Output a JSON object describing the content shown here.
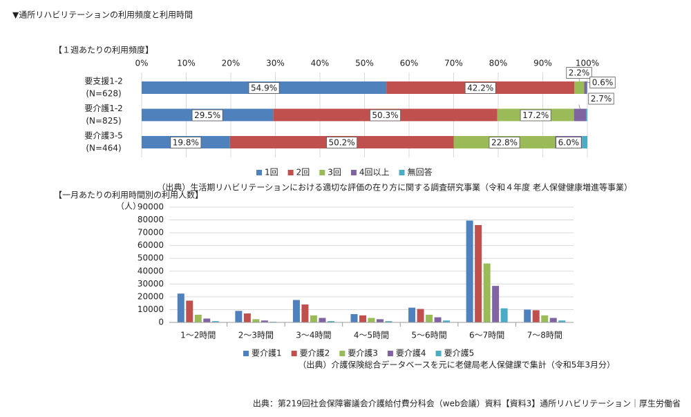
{
  "title": "▼通所リハビリテーションの利用頻度と利用時間",
  "footer": "出典：第219回社会保障審議会介護給付費分科会（web会議）資料【資料3】通所リハビリテーション｜厚生労働省",
  "chart_data": [
    {
      "type": "bar",
      "orientation": "horizontal",
      "stacked": true,
      "title": "【１週あたりの利用頻度】",
      "categories": [
        "要支援1-2",
        "要介護1-2",
        "要介護3-5"
      ],
      "category_notes": [
        "(N=628)",
        "(N=825)",
        "(N=464)"
      ],
      "xlim": [
        0,
        100
      ],
      "xticks": [
        {
          "value": 0,
          "label": "0%"
        },
        {
          "value": 10,
          "label": "10%"
        },
        {
          "value": 20,
          "label": "20%"
        },
        {
          "value": 30,
          "label": "30%"
        },
        {
          "value": 40,
          "label": "40%"
        },
        {
          "value": 50,
          "label": "50%"
        },
        {
          "value": 60,
          "label": "60%"
        },
        {
          "value": 70,
          "label": "70%"
        },
        {
          "value": 80,
          "label": "80%"
        },
        {
          "value": 90,
          "label": "90%"
        },
        {
          "value": 100,
          "label": "100%"
        }
      ],
      "grid": true,
      "series": [
        {
          "name": "1回",
          "color": "#4f81bd",
          "values": [
            54.9,
            29.5,
            19.8
          ],
          "value_labels": [
            "54.9%",
            "29.5%",
            "19.8%"
          ]
        },
        {
          "name": "2回",
          "color": "#c0504d",
          "values": [
            42.2,
            50.3,
            50.2
          ],
          "value_labels": [
            "42.2%",
            "50.3%",
            "50.2%"
          ]
        },
        {
          "name": "3回",
          "color": "#9bbb59",
          "values": [
            2.2,
            17.2,
            22.8
          ],
          "value_labels": [
            "2.2%",
            "17.2%",
            "22.8%"
          ]
        },
        {
          "name": "4回以上",
          "color": "#8064a2",
          "values": [
            0.6,
            2.7,
            6.0
          ],
          "value_labels": [
            "0.6%",
            "2.7%",
            "6.0%"
          ]
        },
        {
          "name": "無回答",
          "color": "#4bacc6",
          "values": [
            0.1,
            0.3,
            1.2
          ]
        }
      ],
      "note": "（出典）生活期リハビリテーションにおける適切な評価の在り方に関する調査研究事業（令和４年度 老人保健健康増進等事業）"
    },
    {
      "type": "bar",
      "orientation": "vertical",
      "stacked": false,
      "title": "【一月あたりの利用時間別の利用人数】",
      "y_label": "（人）",
      "categories": [
        "1～2時間",
        "2～3時間",
        "3～4時間",
        "4～5時間",
        "5～6時間",
        "6～7時間",
        "7～8時間"
      ],
      "ylim": [
        0,
        90000
      ],
      "yticks": [
        0,
        10000,
        20000,
        30000,
        40000,
        50000,
        60000,
        70000,
        80000,
        90000
      ],
      "grid": true,
      "series": [
        {
          "name": "要介護1",
          "color": "#4f81bd",
          "values": [
            22500,
            9000,
            17500,
            6500,
            11500,
            79500,
            10000
          ]
        },
        {
          "name": "要介護2",
          "color": "#c0504d",
          "values": [
            17000,
            7000,
            14000,
            5500,
            10500,
            76000,
            9500
          ]
        },
        {
          "name": "要介護3",
          "color": "#9bbb59",
          "values": [
            6000,
            2500,
            5500,
            3500,
            6000,
            46000,
            5500
          ]
        },
        {
          "name": "要介護4",
          "color": "#8064a2",
          "values": [
            3000,
            1500,
            3500,
            2500,
            4000,
            28500,
            3500
          ]
        },
        {
          "name": "要介護5",
          "color": "#4bacc6",
          "values": [
            1000,
            500,
            1000,
            1000,
            1500,
            11000,
            1500
          ]
        }
      ],
      "note": "（出典）介護保険総合データベースを元に老健局老人保健課で集計（令和5年3月分）"
    }
  ]
}
